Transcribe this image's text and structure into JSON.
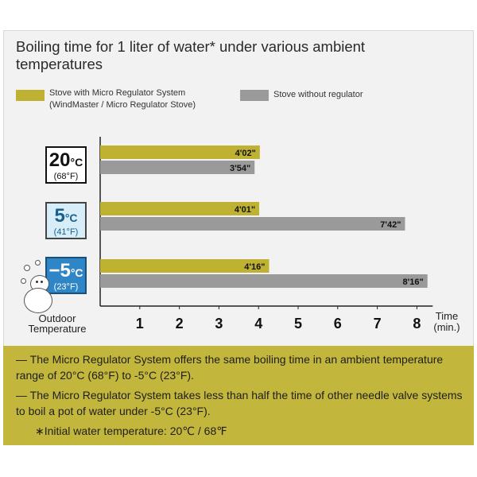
{
  "title": "Boiling time for 1 liter of water* under various ambient temperatures",
  "legend": [
    {
      "label_line1": "Stove with Micro Regulator System",
      "label_line2": "(WindMaster / Micro Regulator Stove)",
      "color": "#bfb132"
    },
    {
      "label_line1": "Stove without regulator",
      "label_line2": "",
      "color": "#9a9a9a"
    }
  ],
  "temperatures": [
    {
      "celsius": "20",
      "unit_c": "°C",
      "fahrenheit": "(68°F)",
      "box_bg": "#ffffff",
      "box_border": "#111111",
      "text_color": "#111111"
    },
    {
      "celsius": "5",
      "unit_c": "°C",
      "fahrenheit": "(41°F)",
      "box_bg": "#d7eef8",
      "box_border": "#444444",
      "text_color": "#1a5e8c"
    },
    {
      "celsius": "−5",
      "unit_c": "°C",
      "fahrenheit": "(23°F)",
      "box_bg": "#2f86c6",
      "box_border": "#1a4f7a",
      "text_color": "#ffffff"
    }
  ],
  "chart_data": {
    "type": "bar",
    "orientation": "horizontal",
    "categories": [
      "20°C (68°F)",
      "5°C (41°F)",
      "−5°C (23°F)"
    ],
    "series": [
      {
        "name": "Stove with Micro Regulator System",
        "values": [
          4.033,
          4.017,
          4.267
        ],
        "labels": [
          "4'02\"",
          "4'01\"",
          "4'16\""
        ],
        "color": "#bfb132"
      },
      {
        "name": "Stove without regulator",
        "values": [
          3.9,
          7.7,
          8.267
        ],
        "labels": [
          "3'54\"",
          "7'42\"",
          "8'16\""
        ],
        "color": "#9a9a9a"
      }
    ],
    "xticks": [
      "1",
      "2",
      "3",
      "4",
      "5",
      "6",
      "7",
      "8"
    ],
    "xlim": [
      0,
      8
    ],
    "xlabel": "Time (min.)",
    "ylabel": "Outdoor Temperature"
  },
  "axis": {
    "ylabel_line1": "Outdoor",
    "ylabel_line2": "Temperature",
    "xlabel_line1": "Time",
    "xlabel_line2": "(min.)"
  },
  "notes": [
    "— The Micro Regulator System offers the same boiling time in an ambient temperature range of 20°C (68°F) to -5°C (23°F).",
    "— The Micro Regulator System takes less than half the time of other needle valve systems to boil a pot of water under -5°C (23°F).",
    "∗Initial water temperature: 20℃ / 68℉"
  ]
}
